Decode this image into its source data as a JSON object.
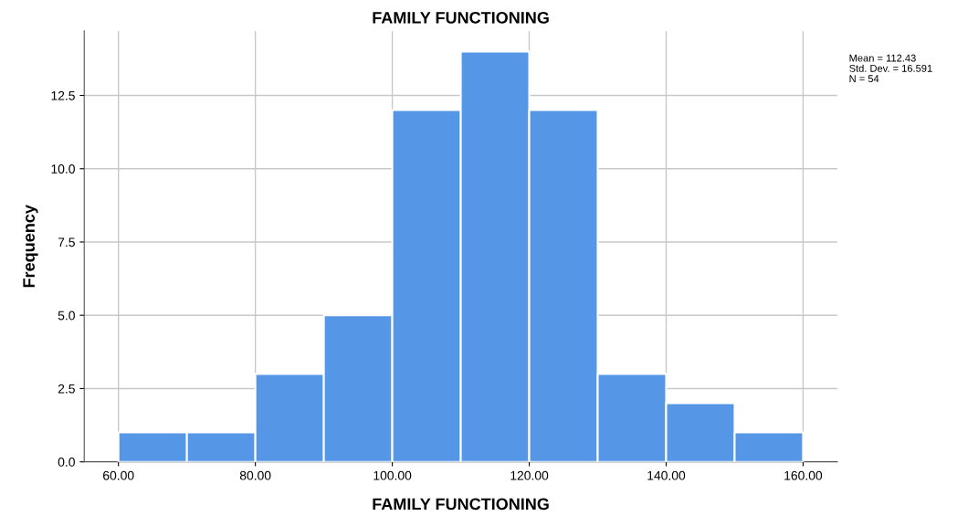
{
  "chart_data": {
    "type": "histogram",
    "title": "FAMILY FUNCTIONING",
    "xlabel": "FAMILY FUNCTIONING",
    "ylabel": "Frequency",
    "bins": [
      60,
      70,
      80,
      90,
      100,
      110,
      120,
      130,
      140,
      150,
      160
    ],
    "values": [
      1,
      1,
      3,
      5,
      12,
      14,
      12,
      3,
      2,
      1
    ],
    "color": "#5596e6",
    "xlim": [
      55,
      165
    ],
    "ylim": [
      0,
      14.7
    ],
    "xticks": [
      {
        "value": 60,
        "label": "60.00"
      },
      {
        "value": 80,
        "label": "80.00"
      },
      {
        "value": 100,
        "label": "100.00"
      },
      {
        "value": 120,
        "label": "120.00"
      },
      {
        "value": 140,
        "label": "140.00"
      },
      {
        "value": 160,
        "label": "160.00"
      }
    ],
    "yticks": [
      {
        "value": 0,
        "label": "0.0"
      },
      {
        "value": 2.5,
        "label": "2.5"
      },
      {
        "value": 5,
        "label": "5.0"
      },
      {
        "value": 7.5,
        "label": "7.5"
      },
      {
        "value": 10,
        "label": "10.0"
      },
      {
        "value": 12.5,
        "label": "12.5"
      }
    ],
    "grid": true,
    "annotations": [
      "Mean = 112.43",
      "Std. Dev. = 16.591",
      "N = 54"
    ]
  }
}
